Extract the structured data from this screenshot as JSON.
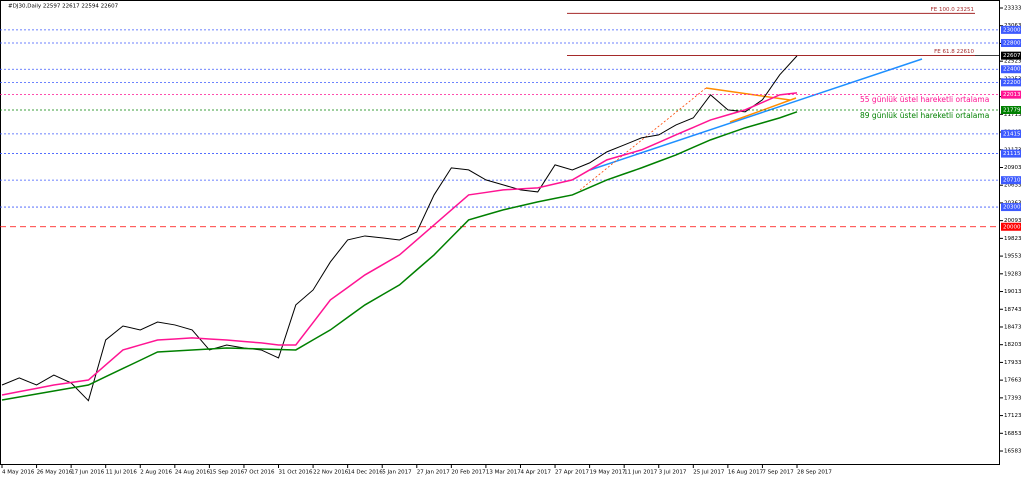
{
  "chart_data": {
    "type": "line",
    "title": "#DJ30,Daily  22597 22617 22594 22607",
    "categories": [
      "4 May 2016",
      null,
      "26 May 2016",
      null,
      "17 Jun 2016",
      null,
      "11 Jul 2016",
      null,
      "2 Aug 2016",
      null,
      "24 Aug 2016",
      null,
      "15 Sep 2016",
      null,
      "7 Oct 2016",
      null,
      "31 Oct 2016",
      null,
      "22 Nov 2016",
      null,
      "14 Dec 2016",
      null,
      "5 Jan 2017",
      null,
      "27 Jan 2017",
      null,
      "20 Feb 2017",
      null,
      "13 Mar 2017",
      null,
      "4 Apr 2017",
      null,
      "27 Apr 2017",
      null,
      "19 May 2017",
      null,
      "11 Jun 2017",
      null,
      "3 Jul 2017",
      null,
      "25 Jul 2017",
      null,
      "16 Aug 2017",
      null,
      "7 Sep 2017",
      null,
      "28 Sep 2017"
    ],
    "series": [
      {
        "name": "#DJ30",
        "color": "#000000",
        "values": [
          17589,
          17696,
          17589,
          17741,
          17620,
          17350,
          18275,
          18488,
          18428,
          18549,
          18504,
          18428,
          18123,
          18199,
          18153,
          18123,
          18001,
          18809,
          19037,
          19464,
          19799,
          19860,
          19830,
          19799,
          19921,
          20485,
          20897,
          20866,
          20714,
          20638,
          20562,
          20531,
          20943,
          20866,
          20973,
          21141,
          21247,
          21354,
          21400,
          21552,
          21659,
          22010,
          21781,
          21751,
          21934,
          22315,
          22604
        ]
      },
      {
        "name": "55 günlük üstel hareketli ortalama",
        "color": "#ff1493",
        "values": [
          17437,
          17488,
          17538,
          17589,
          17627,
          17665,
          17894,
          18123,
          18199,
          18275,
          18290,
          18306,
          18290,
          18275,
          18252,
          18230,
          18199,
          18199,
          18540,
          18885,
          19075,
          19266,
          19418,
          19571,
          19800,
          20028,
          20256,
          20485,
          20523,
          20562,
          20577,
          20592,
          20653,
          20714,
          20866,
          21019,
          21095,
          21171,
          21285,
          21400,
          21514,
          21628,
          21705,
          21781,
          21895,
          22010,
          22040
        ]
      },
      {
        "name": "89 günlük üstel hareketli ortalama",
        "color": "#008000",
        "values": [
          17360,
          17406,
          17452,
          17497,
          17543,
          17589,
          17715,
          17841,
          17966,
          18092,
          18107,
          18123,
          18138,
          18153,
          18146,
          18138,
          18130,
          18123,
          18276,
          18428,
          18619,
          18809,
          18962,
          19114,
          19343,
          19571,
          19838,
          20104,
          20181,
          20257,
          20318,
          20379,
          20432,
          20485,
          20600,
          20714,
          20806,
          20897,
          20996,
          21095,
          21210,
          21324,
          21416,
          21507,
          21583,
          21659,
          21751
        ]
      }
    ],
    "ylim": [
      16370,
      23455
    ],
    "yticks": [
      16583,
      16853,
      17123,
      17393,
      17663,
      17933,
      18203,
      18473,
      18743,
      19013,
      19283,
      19553,
      19823,
      20093,
      20363,
      20633,
      20903,
      21173,
      21443,
      21713,
      21983,
      22253,
      22523,
      22793,
      23063,
      23333
    ],
    "levels": [
      {
        "value": 23000,
        "color": "#3d5afe",
        "style": "dotted"
      },
      {
        "value": 22800,
        "color": "#3d5afe",
        "style": "dotted"
      },
      {
        "value": 22607,
        "color": "#000000",
        "style": "solid"
      },
      {
        "value": 22400,
        "color": "#3d5afe",
        "style": "dotted"
      },
      {
        "value": 22200,
        "color": "#3d5afe",
        "style": "dotted"
      },
      {
        "value": 22013,
        "color": "#ff1493",
        "style": "dotted"
      },
      {
        "value": 21779,
        "color": "#008000",
        "style": "dotted"
      },
      {
        "value": 21415,
        "color": "#3d5afe",
        "style": "dotted"
      },
      {
        "value": 21115,
        "color": "#3d5afe",
        "style": "dotted"
      },
      {
        "value": 20710,
        "color": "#3d5afe",
        "style": "dotted"
      },
      {
        "value": 20300,
        "color": "#3d5afe",
        "style": "dotted"
      },
      {
        "value": 20000,
        "color": "#ff0000",
        "style": "dashed"
      }
    ],
    "fibo": [
      {
        "label": "FE  100.0  23251",
        "value": 23251,
        "color": "#a52a2a"
      },
      {
        "label": "FE  61.8  22610",
        "value": 22610,
        "color": "#a52a2a"
      }
    ]
  }
}
